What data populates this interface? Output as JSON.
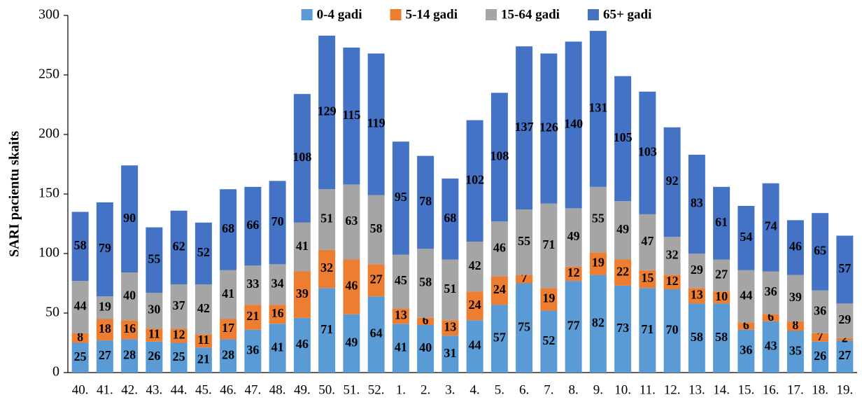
{
  "chart_data": {
    "type": "stacked_bar",
    "y_label": "SARI pacientu skaits",
    "categories": [
      "40.",
      "41.",
      "42.",
      "43.",
      "44.",
      "45.",
      "46.",
      "47.",
      "48.",
      "49.",
      "50.",
      "51.",
      "52.",
      "1.",
      "2.",
      "3.",
      "4.",
      "5.",
      "6.",
      "7.",
      "8.",
      "9.",
      "10.",
      "11.",
      "12.",
      "13.",
      "14.",
      "15.",
      "16.",
      "17.",
      "18.",
      "19."
    ],
    "series": [
      {
        "name": "0-4 gadi",
        "color": "#5b9bd5",
        "values": [
          25,
          27,
          28,
          26,
          25,
          21,
          28,
          36,
          41,
          46,
          71,
          49,
          64,
          41,
          40,
          31,
          44,
          57,
          75,
          52,
          77,
          82,
          73,
          71,
          70,
          58,
          58,
          36,
          43,
          35,
          26,
          27
        ]
      },
      {
        "name": "5-14 gadi",
        "color": "#ed7d31",
        "values": [
          8,
          18,
          16,
          11,
          12,
          11,
          17,
          21,
          16,
          39,
          32,
          46,
          27,
          13,
          6,
          13,
          24,
          24,
          7,
          19,
          12,
          19,
          22,
          15,
          12,
          13,
          10,
          6,
          6,
          8,
          7,
          2
        ]
      },
      {
        "name": "15-64 gadi",
        "color": "#a5a5a5",
        "values": [
          44,
          19,
          40,
          30,
          37,
          42,
          41,
          33,
          34,
          41,
          51,
          63,
          58,
          45,
          58,
          51,
          42,
          46,
          55,
          71,
          49,
          55,
          49,
          47,
          32,
          29,
          27,
          44,
          36,
          39,
          36,
          29
        ]
      },
      {
        "name": "65+ gadi",
        "color": "#4472c4",
        "values": [
          58,
          79,
          90,
          55,
          62,
          52,
          68,
          66,
          70,
          108,
          129,
          115,
          119,
          95,
          78,
          68,
          102,
          108,
          137,
          126,
          140,
          131,
          105,
          103,
          92,
          83,
          61,
          54,
          74,
          46,
          65,
          57
        ]
      }
    ],
    "ylim": [
      0,
      300
    ],
    "yticks": [
      0,
      50,
      100,
      150,
      200,
      250,
      300
    ],
    "legend": "top"
  }
}
